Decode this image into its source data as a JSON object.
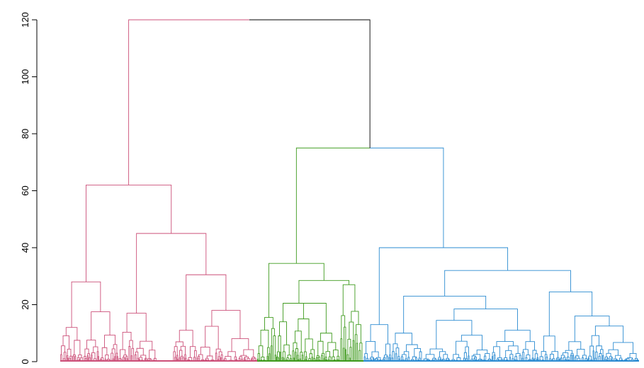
{
  "chart_data": {
    "type": "dendrogram",
    "title": "",
    "xlabel": "",
    "ylabel": "",
    "ylim": [
      0,
      120
    ],
    "y_ticks": [
      "0",
      "20",
      "40",
      "60",
      "80",
      "100",
      "120"
    ],
    "y_tick_values": [
      0,
      20,
      40,
      60,
      80,
      100,
      120
    ],
    "root_height": 120,
    "cluster_count": 3,
    "clusters": [
      {
        "color": "#CC5079",
        "merge_height": 62,
        "sub_merges": [
          {
            "height": 28,
            "children_heights": [
              12,
              17.5
            ]
          },
          {
            "height": 45,
            "children_heights": [
              17,
              30.5
            ]
          },
          {
            "height": 30.5,
            "children_heights": [
              11,
              18
            ]
          }
        ]
      },
      {
        "color": "#3E9A1D",
        "merge_height": 34.5,
        "sub_merges": [
          {
            "height": 28.5,
            "children_heights": [
              20.5,
              27
            ]
          },
          {
            "height": 20.5,
            "children_heights": [
              15,
              10
            ]
          }
        ]
      },
      {
        "color": "#2B8BD1",
        "merge_height": 40,
        "sub_merges": [
          {
            "height": 32,
            "children_heights": [
              23,
              24.5
            ]
          },
          {
            "height": 23,
            "children_heights": [
              18.5,
              14.5
            ]
          },
          {
            "height": 24.5,
            "children_heights": [
              16,
              12.5
            ]
          }
        ]
      }
    ],
    "top_merges": [
      {
        "between": [
          "cluster 2",
          "cluster 3"
        ],
        "height": 75
      },
      {
        "between": [
          "cluster 1",
          "clusters 2+3"
        ],
        "height": 120
      }
    ],
    "colors": {
      "cluster1": "#CC5079",
      "cluster2": "#3E9A1D",
      "cluster3": "#2B8BD1",
      "root": "#000000"
    }
  }
}
